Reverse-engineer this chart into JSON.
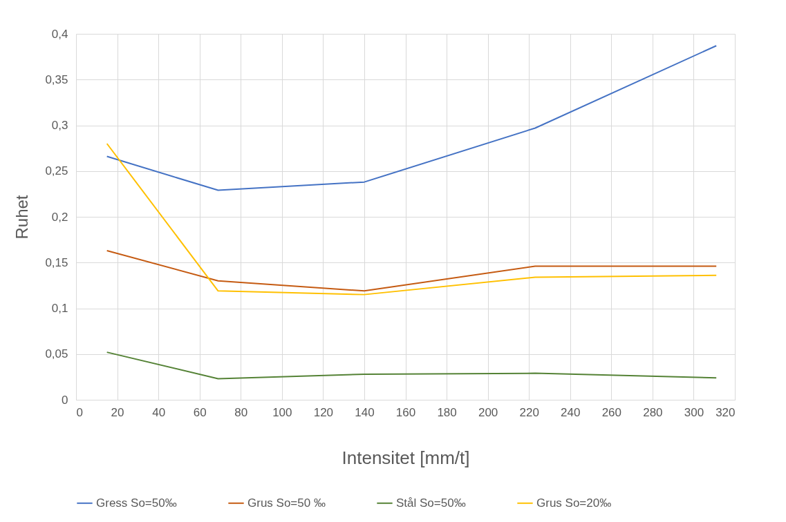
{
  "chart_data": {
    "type": "line",
    "xlabel": "Intensitet [mm/t]",
    "ylabel": "Ruhet",
    "x": [
      15,
      69,
      140,
      223,
      311
    ],
    "series": [
      {
        "name": "Gress So=50‰",
        "color": "#4472c4",
        "values": [
          0.266,
          0.229,
          0.238,
          0.297,
          0.387
        ]
      },
      {
        "name": "Grus So=50 ‰",
        "color": "#c55a11",
        "values": [
          0.163,
          0.13,
          0.119,
          0.146,
          0.146
        ]
      },
      {
        "name": "Stål So=50‰",
        "color": "#548235",
        "values": [
          0.052,
          0.023,
          0.028,
          0.029,
          0.024
        ]
      },
      {
        "name": "Grus So=20‰",
        "color": "#ffc000",
        "values": [
          0.28,
          0.119,
          0.115,
          0.134,
          0.136
        ]
      }
    ],
    "xlim": [
      0,
      320
    ],
    "xticks": [
      0,
      20,
      40,
      60,
      80,
      100,
      120,
      140,
      160,
      180,
      200,
      220,
      240,
      260,
      280,
      300,
      320
    ],
    "ylim": [
      0,
      0.4
    ],
    "yticks": [
      0,
      {
        "value": 0.05,
        "label": "0,05"
      },
      {
        "value": 0.1,
        "label": "0,1"
      },
      {
        "value": 0.15,
        "label": "0,15"
      },
      {
        "value": 0.2,
        "label": "0,2"
      },
      {
        "value": 0.25,
        "label": "0,25"
      },
      {
        "value": 0.3,
        "label": "0,3"
      },
      {
        "value": 0.35,
        "label": "0,35"
      },
      {
        "value": 0.4,
        "label": "0,4"
      }
    ],
    "grid": true,
    "legend": "bottom",
    "marker": "none",
    "line_style": "solid"
  }
}
